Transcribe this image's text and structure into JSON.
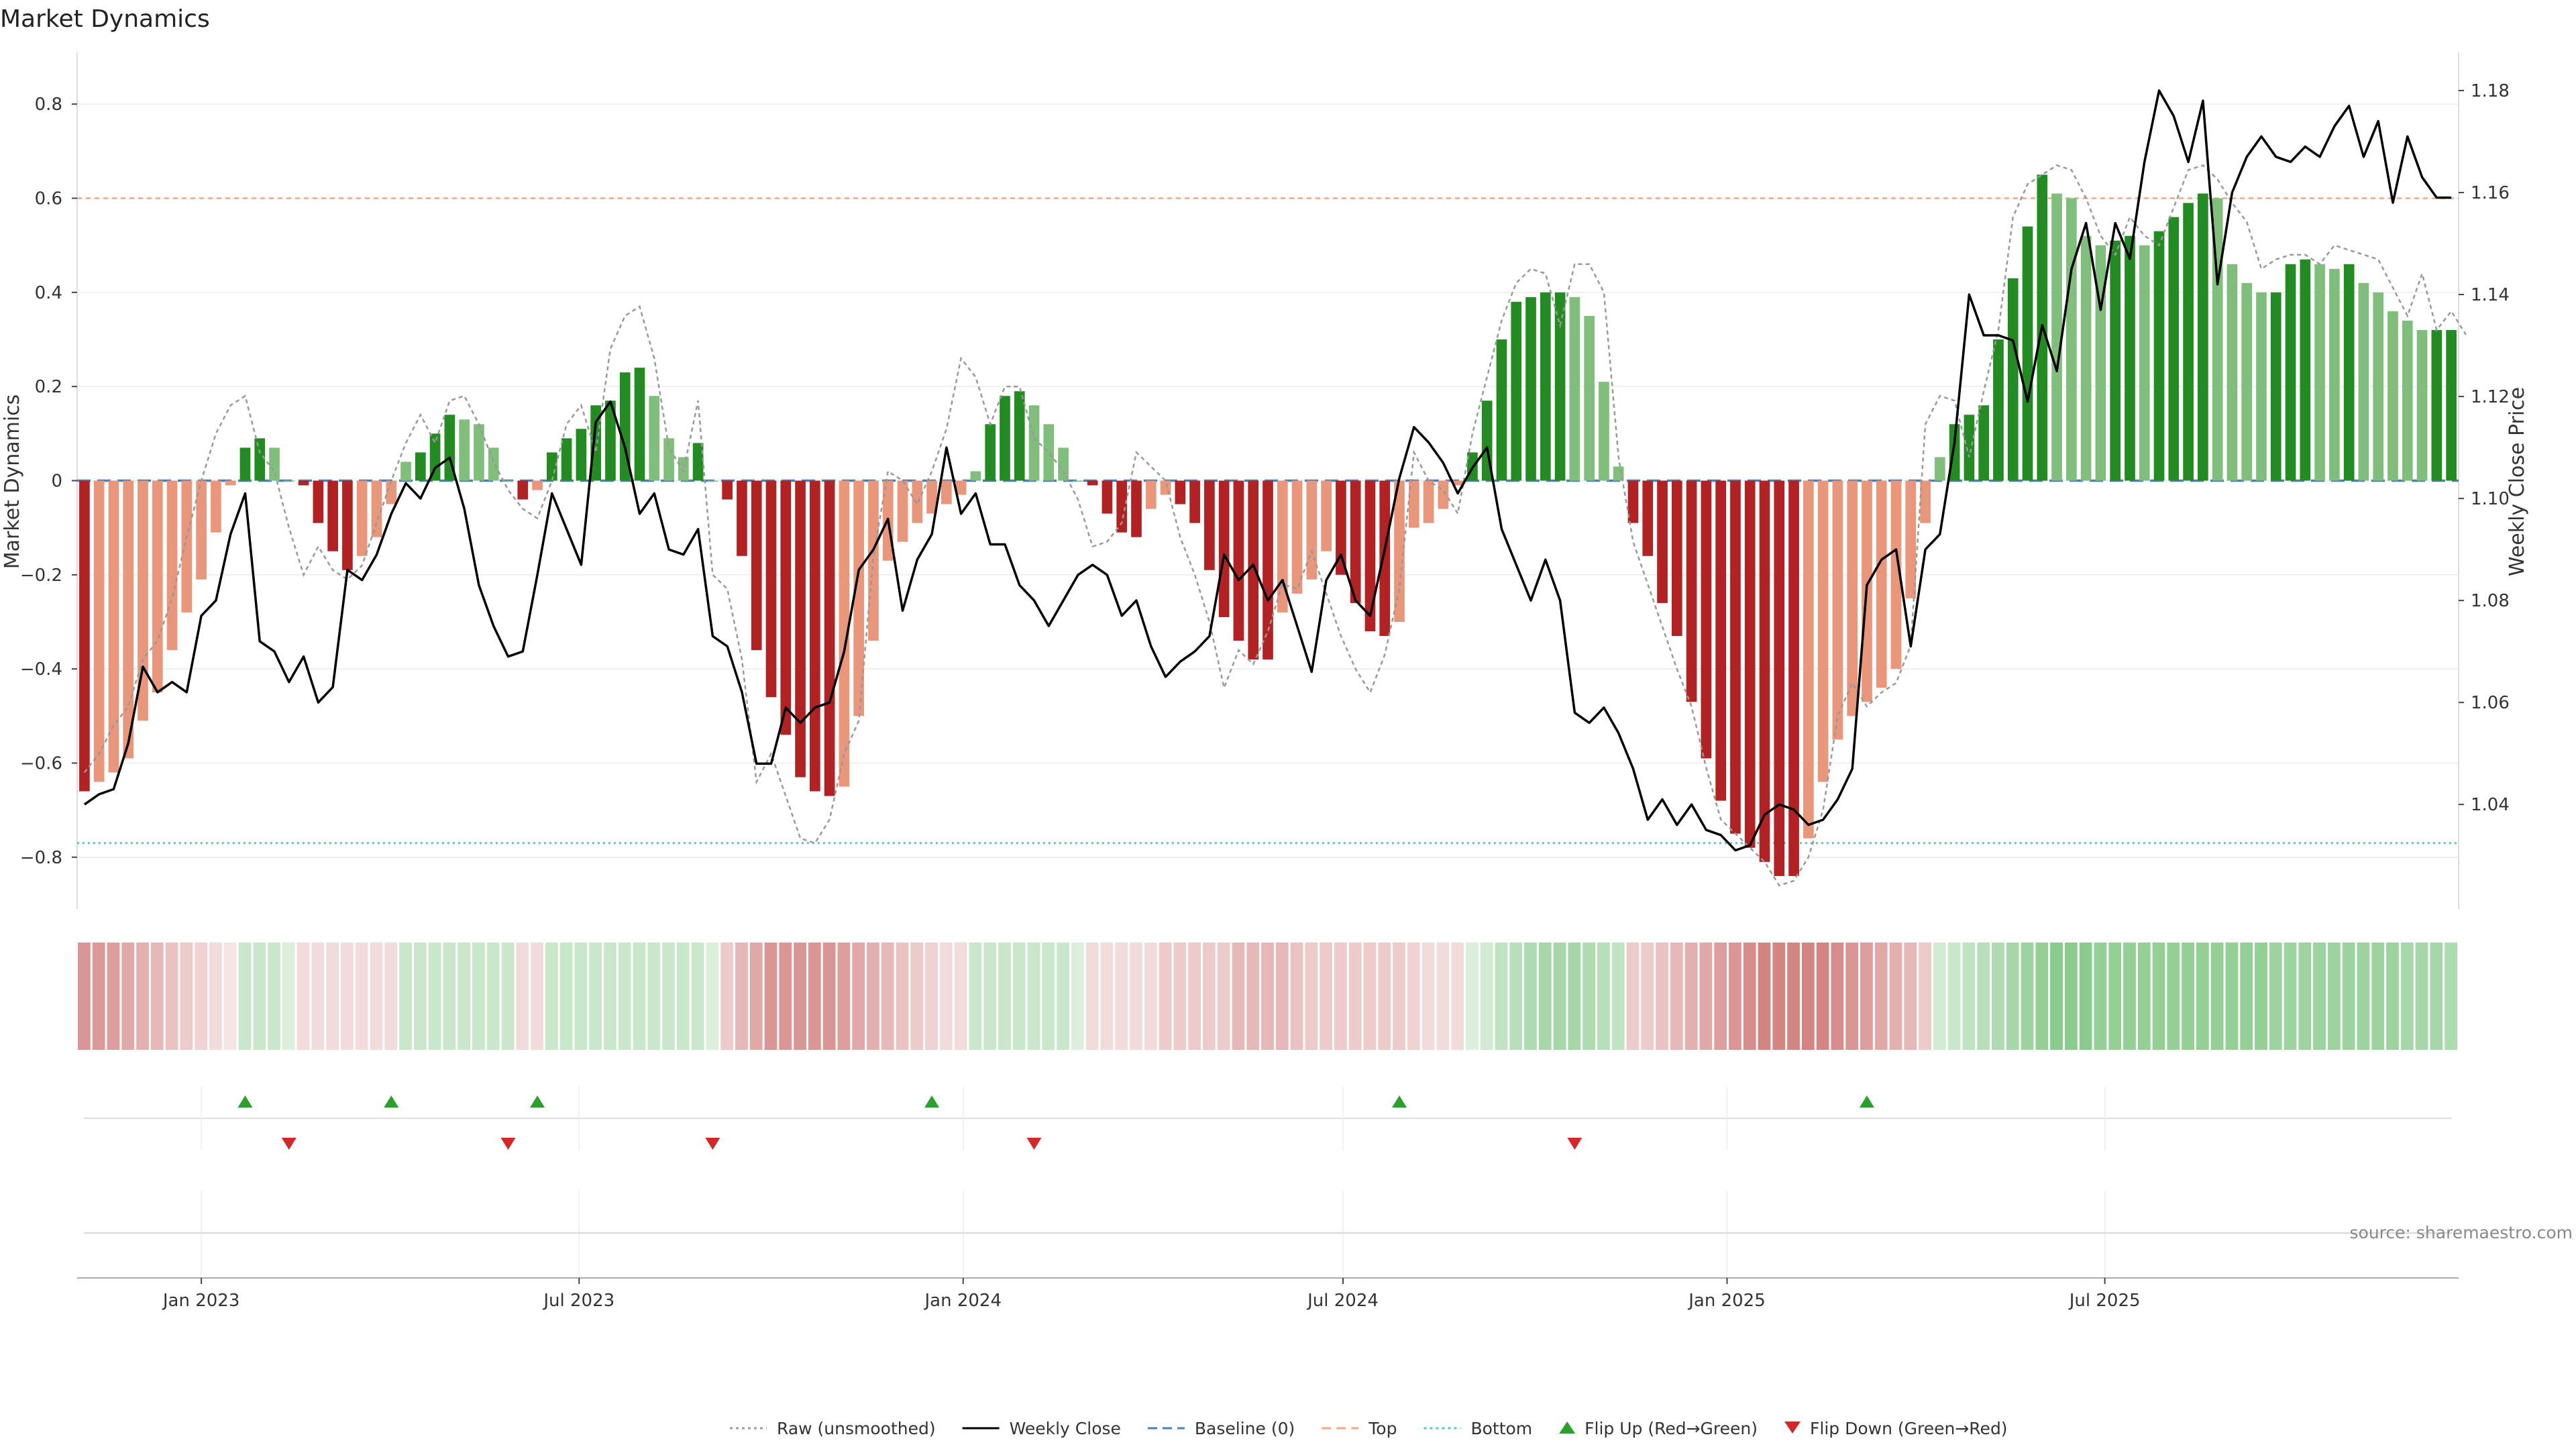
{
  "chart_data": {
    "type": "bar",
    "title": "Market Dynamics",
    "ylabel_left": "Market Dynamics",
    "ylabel_right": "Weekly Close Price",
    "ylim_left": [
      -0.91,
      0.91
    ],
    "ylim_right": [
      1.0195,
      1.1875
    ],
    "yticks_left": [
      {
        "value": 0.8,
        "label": "0.8"
      },
      {
        "value": 0.6,
        "label": "0.6"
      },
      {
        "value": 0.4,
        "label": "0.4"
      },
      {
        "value": 0.2,
        "label": "0.2"
      },
      {
        "value": 0,
        "label": "0"
      },
      {
        "value": -0.2,
        "label": "−0.2"
      },
      {
        "value": -0.4,
        "label": "−0.4"
      },
      {
        "value": -0.6,
        "label": "−0.6"
      },
      {
        "value": -0.8,
        "label": "−0.8"
      }
    ],
    "yticks_right": [
      {
        "value": 1.18,
        "label": "1.18"
      },
      {
        "value": 1.16,
        "label": "1.16"
      },
      {
        "value": 1.14,
        "label": "1.14"
      },
      {
        "value": 1.12,
        "label": "1.12"
      },
      {
        "value": 1.1,
        "label": "1.10"
      },
      {
        "value": 1.08,
        "label": "1.08"
      },
      {
        "value": 1.06,
        "label": "1.06"
      },
      {
        "value": 1.04,
        "label": "1.04"
      }
    ],
    "x_start": "2022-11-06",
    "x_step_days": 7,
    "xticks": [
      {
        "date": "2023-01-01",
        "label": "Jan 2023"
      },
      {
        "date": "2023-07-01",
        "label": "Jul 2023"
      },
      {
        "date": "2024-01-01",
        "label": "Jan 2024"
      },
      {
        "date": "2024-07-01",
        "label": "Jul 2024"
      },
      {
        "date": "2025-01-01",
        "label": "Jan 2025"
      },
      {
        "date": "2025-07-01",
        "label": "Jul 2025"
      }
    ],
    "top_threshold": 0.6,
    "bottom_threshold": -0.77,
    "baseline": 0,
    "smoothed": [
      -0.66,
      -0.64,
      -0.62,
      -0.59,
      -0.51,
      -0.45,
      -0.36,
      -0.28,
      -0.21,
      -0.11,
      -0.01,
      0.07,
      0.09,
      0.07,
      0.0,
      -0.01,
      -0.09,
      -0.15,
      -0.19,
      -0.16,
      -0.12,
      -0.05,
      0.04,
      0.06,
      0.1,
      0.14,
      0.13,
      0.12,
      0.07,
      0.0,
      -0.04,
      -0.02,
      0.06,
      0.09,
      0.11,
      0.16,
      0.17,
      0.23,
      0.24,
      0.18,
      0.09,
      0.05,
      0.08,
      0.0,
      -0.04,
      -0.16,
      -0.36,
      -0.46,
      -0.54,
      -0.63,
      -0.66,
      -0.67,
      -0.65,
      -0.5,
      -0.34,
      -0.17,
      -0.13,
      -0.09,
      -0.07,
      -0.05,
      -0.03,
      0.02,
      0.12,
      0.18,
      0.19,
      0.16,
      0.12,
      0.07,
      0.0,
      -0.01,
      -0.07,
      -0.11,
      -0.12,
      -0.06,
      -0.03,
      -0.05,
      -0.09,
      -0.19,
      -0.29,
      -0.34,
      -0.38,
      -0.38,
      -0.28,
      -0.24,
      -0.21,
      -0.15,
      -0.2,
      -0.26,
      -0.32,
      -0.33,
      -0.3,
      -0.1,
      -0.09,
      -0.06,
      -0.01,
      0.06,
      0.17,
      0.3,
      0.38,
      0.39,
      0.4,
      0.4,
      0.39,
      0.35,
      0.21,
      0.03,
      -0.09,
      -0.16,
      -0.26,
      -0.33,
      -0.47,
      -0.59,
      -0.68,
      -0.75,
      -0.78,
      -0.81,
      -0.84,
      -0.84,
      -0.76,
      -0.64,
      -0.55,
      -0.5,
      -0.47,
      -0.44,
      -0.4,
      -0.25,
      -0.09,
      0.05,
      0.12,
      0.14,
      0.16,
      0.3,
      0.43,
      0.54,
      0.65,
      0.61,
      0.6,
      0.52,
      0.5,
      0.51,
      0.52,
      0.5,
      0.53,
      0.56,
      0.59,
      0.61,
      0.6,
      0.46,
      0.42,
      0.4,
      0.4,
      0.46,
      0.47,
      0.46,
      0.45,
      0.46,
      0.42,
      0.4,
      0.36,
      0.34,
      0.32,
      0.32,
      0.32
    ],
    "raw": [
      -0.62,
      -0.58,
      -0.52,
      -0.48,
      -0.38,
      -0.34,
      -0.25,
      -0.12,
      0.0,
      0.1,
      0.16,
      0.18,
      0.06,
      0.02,
      -0.1,
      -0.2,
      -0.14,
      -0.19,
      -0.21,
      -0.18,
      -0.09,
      0.0,
      0.08,
      0.14,
      0.08,
      0.17,
      0.18,
      0.12,
      0.04,
      -0.02,
      -0.06,
      -0.08,
      0.0,
      0.12,
      0.16,
      0.06,
      0.28,
      0.35,
      0.37,
      0.26,
      0.07,
      0.02,
      0.17,
      -0.2,
      -0.23,
      -0.38,
      -0.64,
      -0.58,
      -0.67,
      -0.76,
      -0.77,
      -0.72,
      -0.58,
      -0.51,
      -0.16,
      0.02,
      0.0,
      -0.05,
      0.02,
      0.11,
      0.26,
      0.22,
      0.12,
      0.2,
      0.2,
      0.09,
      0.06,
      0.02,
      -0.04,
      -0.14,
      -0.13,
      -0.09,
      0.06,
      0.03,
      0.0,
      -0.12,
      -0.2,
      -0.3,
      -0.44,
      -0.36,
      -0.39,
      -0.32,
      -0.22,
      -0.23,
      -0.15,
      -0.24,
      -0.33,
      -0.4,
      -0.45,
      -0.37,
      -0.23,
      0.06,
      0.0,
      -0.02,
      -0.07,
      0.1,
      0.22,
      0.34,
      0.42,
      0.45,
      0.44,
      0.33,
      0.46,
      0.46,
      0.4,
      0.05,
      -0.13,
      -0.22,
      -0.31,
      -0.4,
      -0.48,
      -0.61,
      -0.72,
      -0.75,
      -0.78,
      -0.81,
      -0.86,
      -0.85,
      -0.8,
      -0.7,
      -0.5,
      -0.43,
      -0.48,
      -0.45,
      -0.43,
      -0.35,
      0.12,
      0.18,
      0.17,
      0.05,
      0.19,
      0.32,
      0.56,
      0.63,
      0.65,
      0.67,
      0.66,
      0.6,
      0.52,
      0.48,
      0.56,
      0.52,
      0.5,
      0.58,
      0.66,
      0.67,
      0.64,
      0.59,
      0.55,
      0.45,
      0.47,
      0.48,
      0.48,
      0.46,
      0.5,
      0.49,
      0.48,
      0.47,
      0.41,
      0.35,
      0.44,
      0.32,
      0.36,
      0.31
    ],
    "close": [
      1.04,
      1.042,
      1.043,
      1.052,
      1.067,
      1.062,
      1.064,
      1.062,
      1.077,
      1.08,
      1.093,
      1.101,
      1.072,
      1.07,
      1.064,
      1.069,
      1.06,
      1.063,
      1.086,
      1.084,
      1.089,
      1.097,
      1.103,
      1.1,
      1.106,
      1.108,
      1.098,
      1.083,
      1.075,
      1.069,
      1.07,
      1.085,
      1.101,
      1.094,
      1.087,
      1.115,
      1.119,
      1.11,
      1.097,
      1.101,
      1.09,
      1.089,
      1.094,
      1.073,
      1.071,
      1.062,
      1.048,
      1.048,
      1.059,
      1.056,
      1.059,
      1.06,
      1.07,
      1.086,
      1.09,
      1.096,
      1.078,
      1.088,
      1.093,
      1.11,
      1.097,
      1.101,
      1.091,
      1.091,
      1.083,
      1.08,
      1.075,
      1.08,
      1.085,
      1.087,
      1.085,
      1.077,
      1.08,
      1.071,
      1.065,
      1.068,
      1.07,
      1.073,
      1.089,
      1.084,
      1.087,
      1.08,
      1.084,
      1.075,
      1.066,
      1.084,
      1.089,
      1.08,
      1.077,
      1.09,
      1.104,
      1.114,
      1.111,
      1.107,
      1.101,
      1.106,
      1.11,
      1.094,
      1.087,
      1.08,
      1.088,
      1.08,
      1.058,
      1.056,
      1.059,
      1.054,
      1.047,
      1.037,
      1.041,
      1.036,
      1.04,
      1.035,
      1.034,
      1.031,
      1.032,
      1.038,
      1.04,
      1.039,
      1.036,
      1.037,
      1.041,
      1.047,
      1.083,
      1.088,
      1.09,
      1.071,
      1.09,
      1.093,
      1.111,
      1.14,
      1.132,
      1.132,
      1.131,
      1.119,
      1.134,
      1.125,
      1.145,
      1.154,
      1.137,
      1.154,
      1.147,
      1.166,
      1.18,
      1.175,
      1.166,
      1.178,
      1.142,
      1.16,
      1.167,
      1.171,
      1.167,
      1.166,
      1.169,
      1.167,
      1.173,
      1.177,
      1.167,
      1.174,
      1.158,
      1.171,
      1.163,
      1.159,
      1.159
    ],
    "heat_strength": [
      0.6,
      0.58,
      0.55,
      0.5,
      0.45,
      0.4,
      0.35,
      0.3,
      0.25,
      0.2,
      0.15,
      0.3,
      0.3,
      0.3,
      0.2,
      0.2,
      0.2,
      0.2,
      0.2,
      0.2,
      0.2,
      0.2,
      0.3,
      0.3,
      0.3,
      0.3,
      0.3,
      0.3,
      0.3,
      0.3,
      0.2,
      0.2,
      0.3,
      0.3,
      0.3,
      0.3,
      0.3,
      0.3,
      0.3,
      0.3,
      0.3,
      0.3,
      0.3,
      0.2,
      0.3,
      0.4,
      0.5,
      0.6,
      0.6,
      0.6,
      0.6,
      0.6,
      0.55,
      0.5,
      0.45,
      0.4,
      0.35,
      0.3,
      0.25,
      0.2,
      0.2,
      0.3,
      0.3,
      0.3,
      0.3,
      0.3,
      0.3,
      0.3,
      0.2,
      0.2,
      0.2,
      0.2,
      0.2,
      0.2,
      0.3,
      0.3,
      0.3,
      0.3,
      0.3,
      0.4,
      0.4,
      0.4,
      0.4,
      0.35,
      0.3,
      0.3,
      0.3,
      0.3,
      0.3,
      0.3,
      0.3,
      0.25,
      0.2,
      0.2,
      0.2,
      0.2,
      0.25,
      0.35,
      0.4,
      0.45,
      0.5,
      0.5,
      0.5,
      0.45,
      0.4,
      0.35,
      0.3,
      0.3,
      0.35,
      0.4,
      0.45,
      0.5,
      0.55,
      0.6,
      0.65,
      0.7,
      0.7,
      0.7,
      0.7,
      0.7,
      0.65,
      0.6,
      0.55,
      0.5,
      0.45,
      0.4,
      0.3,
      0.25,
      0.3,
      0.35,
      0.4,
      0.45,
      0.5,
      0.55,
      0.6,
      0.65,
      0.65,
      0.65,
      0.6,
      0.6,
      0.6,
      0.6,
      0.6,
      0.6,
      0.6,
      0.6,
      0.6,
      0.6,
      0.6,
      0.6,
      0.55,
      0.55,
      0.55,
      0.55,
      0.55,
      0.55,
      0.55,
      0.55,
      0.55,
      0.5,
      0.5,
      0.5,
      0.45,
      0.45,
      0.45,
      0.45,
      0.45
    ],
    "flip_up_indices": [
      11,
      21,
      31,
      58,
      90,
      122
    ],
    "flip_down_indices": [
      14,
      29,
      43,
      65,
      102
    ],
    "legend": [
      {
        "key": "raw",
        "label": "Raw (unsmoothed)",
        "color": "#999999",
        "style": "dotted-line"
      },
      {
        "key": "close",
        "label": "Weekly Close",
        "color": "#000000",
        "style": "solid-line"
      },
      {
        "key": "baseline",
        "label": "Baseline (0)",
        "color": "#4a7fb8",
        "style": "dashed-line"
      },
      {
        "key": "top",
        "label": "Top",
        "color": "#f0a883",
        "style": "dashed-line"
      },
      {
        "key": "bottom",
        "label": "Bottom",
        "color": "#5bc0d6",
        "style": "dotted-line"
      },
      {
        "key": "flip_up",
        "label": "Flip Up (Red→Green)",
        "color": "#2ca02c",
        "style": "triangle-up"
      },
      {
        "key": "flip_down",
        "label": "Flip Down (Green→Red)",
        "color": "#d62728",
        "style": "triangle-down"
      }
    ],
    "legend_position": "bottom-center",
    "colors": {
      "bear_strong": "#b22222",
      "bear_weak": "#e9967a",
      "bull_strong": "#228b22",
      "bull_weak": "#7fbf7b",
      "heat_red": "#c0504d",
      "heat_green": "#4caf50"
    }
  },
  "source_text": "source: sharemaestro.com"
}
